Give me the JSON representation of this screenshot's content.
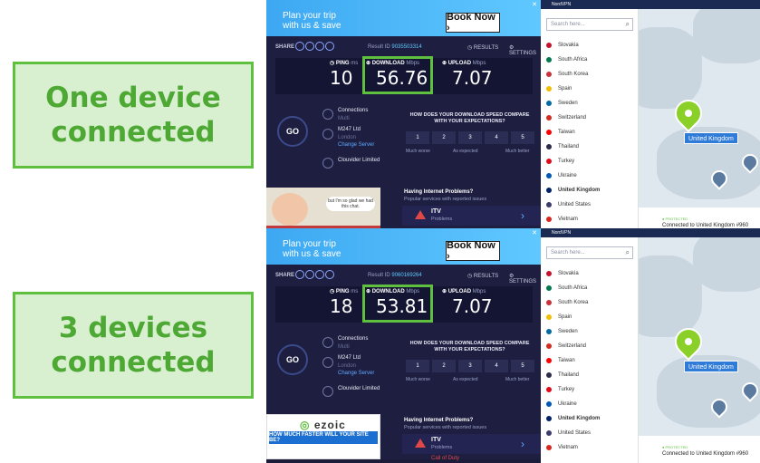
{
  "labels": [
    {
      "line1": "One device",
      "line2": "connected"
    },
    {
      "line1": "3 devices",
      "line2": "connected"
    }
  ],
  "panels": [
    {
      "ad": {
        "text1": "Plan your trip",
        "text2": "with us & save",
        "button": "Book Now ›"
      },
      "speedtest": {
        "share": "SHARE",
        "result_id_label": "Result ID",
        "result_id": "9035503314",
        "results": "RESULTS",
        "settings": "SETTINGS",
        "ping_label": "PING",
        "ping_unit": "ms",
        "ping": "10",
        "download_label": "DOWNLOAD",
        "download_unit": "Mbps",
        "download": "56.76",
        "upload_label": "UPLOAD",
        "upload_unit": "Mbps",
        "upload": "7.07",
        "go": "GO",
        "connections_label": "Connections",
        "connections_mode": "Multi",
        "host": "M247 Ltd",
        "host_city": "London",
        "change_server": "Change Server",
        "isp": "Clouvider Limited",
        "survey_question": "HOW DOES YOUR DOWNLOAD SPEED COMPARE WITH YOUR EXPECTATIONS?",
        "ratings": [
          "1",
          "2",
          "3",
          "4",
          "5"
        ],
        "much_worse": "Much worse",
        "as_expected": "As expected",
        "much_better": "Much better"
      },
      "bottom_ad": {
        "bubble": "but I'm so glad we had this chat."
      },
      "problems": {
        "heading": "Having Internet Problems?",
        "sub": "Popular services with reported issues",
        "service": "ITV",
        "status": "Problems"
      }
    },
    {
      "ad": {
        "text1": "Plan your trip",
        "text2": "with us & save",
        "button": "Book Now ›"
      },
      "speedtest": {
        "share": "SHARE",
        "result_id_label": "Result ID",
        "result_id": "9060169264",
        "results": "RESULTS",
        "settings": "SETTINGS",
        "ping_label": "PING",
        "ping_unit": "ms",
        "ping": "18",
        "download_label": "DOWNLOAD",
        "download_unit": "Mbps",
        "download": "53.81",
        "upload_label": "UPLOAD",
        "upload_unit": "Mbps",
        "upload": "7.07",
        "go": "GO",
        "connections_label": "Connections",
        "connections_mode": "Multi",
        "host": "M247 Ltd",
        "host_city": "London",
        "change_server": "Change Server",
        "isp": "Clouvider Limited",
        "survey_question": "HOW DOES YOUR DOWNLOAD SPEED COMPARE WITH YOUR EXPECTATIONS?",
        "ratings": [
          "1",
          "2",
          "3",
          "4",
          "5"
        ],
        "much_worse": "Much worse",
        "as_expected": "As expected",
        "much_better": "Much better"
      },
      "bottom_ad": {
        "logo": "ezoic",
        "headline": "HOW MUCH FASTER WILL YOUR SITE BE?"
      },
      "problems": {
        "heading": "Having Internet Problems?",
        "sub": "Popular services with reported issues",
        "service": "ITV",
        "status": "Problems",
        "next": "Call of Duty"
      }
    }
  ],
  "nordvpn": {
    "title": "NordVPN",
    "search_placeholder": "Search here...",
    "countries": [
      {
        "name": "Slovakia",
        "color": "#c8102e"
      },
      {
        "name": "South Africa",
        "color": "#007a4d"
      },
      {
        "name": "South Korea",
        "color": "#cd2e3a"
      },
      {
        "name": "Spain",
        "color": "#f1bf00"
      },
      {
        "name": "Sweden",
        "color": "#006aa7"
      },
      {
        "name": "Switzerland",
        "color": "#d52b1e"
      },
      {
        "name": "Taiwan",
        "color": "#fe0000"
      },
      {
        "name": "Thailand",
        "color": "#2d2a4a"
      },
      {
        "name": "Turkey",
        "color": "#e30a17"
      },
      {
        "name": "Ukraine",
        "color": "#0057b7"
      },
      {
        "name": "United Kingdom",
        "color": "#012169"
      },
      {
        "name": "United States",
        "color": "#3c3b6e"
      },
      {
        "name": "Vietnam",
        "color": "#da251d"
      }
    ],
    "selected": "United Kingdom",
    "map_tag": "United Kingdom",
    "protected": "● PROTECTED",
    "connected_text": "Connected to United Kingdom #960"
  },
  "colors": {
    "accent_green": "#5fbf3f",
    "label_bg": "#d8efd0",
    "speedtest_bg": "#1b1c3a",
    "nord_blue": "#2f7bd8"
  }
}
